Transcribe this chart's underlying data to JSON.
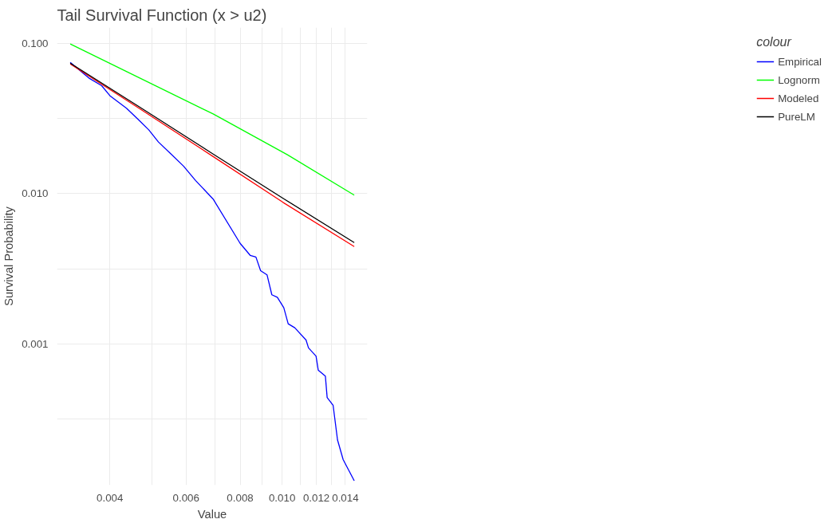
{
  "chart_data": {
    "type": "line",
    "title": "Tail Survival Function (x > u2)",
    "xlabel": "Value",
    "ylabel": "Survival Probability",
    "legend_title": "colour",
    "legend": "right",
    "grid": true,
    "log": "xy",
    "xlim": [
      0.00302,
      0.01574
    ],
    "ylim": [
      0.000115,
      0.127
    ],
    "xticks": [
      0.004,
      {
        "value": 0.005,
        "label": null
      },
      0.006,
      {
        "value": 0.007,
        "label": null
      },
      0.008,
      {
        "value": 0.009,
        "label": null
      },
      {
        "value": 0.01,
        "label": "0.010"
      },
      {
        "value": 0.011,
        "label": null
      },
      {
        "value": 0.012,
        "label": "0.012"
      },
      {
        "value": 0.013,
        "label": null
      },
      {
        "value": 0.014,
        "label": "0.014"
      }
    ],
    "yticks": [
      {
        "value": 0.000316,
        "label": null
      },
      {
        "value": 0.001,
        "label": "0.001"
      },
      {
        "value": 0.00316,
        "label": null
      },
      {
        "value": 0.01,
        "label": "0.010"
      },
      {
        "value": 0.0316,
        "label": null
      },
      {
        "value": 0.1,
        "label": "0.100"
      }
    ],
    "series": [
      {
        "name": "Empirical",
        "color": "#0000ff",
        "x": [
          0.00324,
          0.00359,
          0.00383,
          0.00401,
          0.00437,
          0.00467,
          0.00492,
          0.00518,
          0.00554,
          0.00592,
          0.00631,
          0.00693,
          0.008,
          0.00844,
          0.0087,
          0.00892,
          0.00923,
          0.00947,
          0.00975,
          0.01009,
          0.01033,
          0.0107,
          0.01136,
          0.01151,
          0.01198,
          0.01212,
          0.01259,
          0.01271,
          0.01312,
          0.01343,
          0.01384,
          0.01468
        ],
        "values": [
          0.0744,
          0.0582,
          0.0521,
          0.0444,
          0.0369,
          0.0307,
          0.0265,
          0.022,
          0.0183,
          0.0152,
          0.0122,
          0.00918,
          0.00466,
          0.00388,
          0.00378,
          0.00307,
          0.00288,
          0.00212,
          0.00204,
          0.00174,
          0.00136,
          0.00128,
          0.00106,
          0.00094,
          0.00083,
          0.00067,
          0.00061,
          0.00044,
          0.00039,
          0.00023,
          0.00017,
          0.000123
        ]
      },
      {
        "name": "Lognorm",
        "color": "#00ff00",
        "x": [
          0.00324,
          0.00467,
          0.00693,
          0.01029,
          0.01468
        ],
        "values": [
          0.0988,
          0.0589,
          0.0338,
          0.0181,
          0.00976
        ]
      },
      {
        "name": "Modeled",
        "color": "#ff0000",
        "x": [
          0.00324,
          0.00467,
          0.00693,
          0.01005,
          0.01468
        ],
        "values": [
          0.0726,
          0.0369,
          0.0176,
          0.00873,
          0.00444
        ]
      },
      {
        "name": "PureLM",
        "color": "#000000",
        "x": [
          0.00324,
          0.00467,
          0.00693,
          0.01005,
          0.01468
        ],
        "values": [
          0.0735,
          0.0378,
          0.0183,
          0.00929,
          0.00472
        ]
      }
    ]
  }
}
